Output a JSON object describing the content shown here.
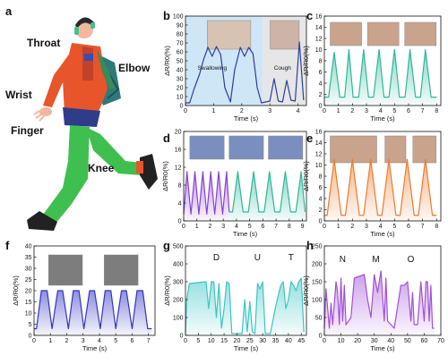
{
  "figure": {
    "illustration": {
      "panel_letter": "a",
      "labels": [
        {
          "key": "throat",
          "text": "Throat"
        },
        {
          "key": "elbow",
          "text": "Elbow"
        },
        {
          "key": "wrist",
          "text": "Wrist"
        },
        {
          "key": "finger",
          "text": "Finger"
        },
        {
          "key": "knee",
          "text": "Knee"
        }
      ]
    }
  },
  "chart_data": [
    {
      "panel": "b",
      "type": "line",
      "xlabel": "Time (s)",
      "ylabel": "ΔR/R0(%)",
      "xlim": [
        0,
        4.3
      ],
      "ylim": [
        0,
        100
      ],
      "xticks": [
        0,
        1,
        2,
        3,
        4
      ],
      "yticks": [
        0,
        10,
        20,
        30,
        40,
        50,
        60,
        70,
        80,
        90,
        100
      ],
      "color": "#2a3f9e",
      "fill": null,
      "bands": [
        {
          "from": 0,
          "to": 2.75,
          "color": "#cfe6f6"
        },
        {
          "from": 2.75,
          "to": 4.3,
          "color": "#e6e6e6"
        }
      ],
      "annotations": [
        {
          "text": "Swallowing",
          "x": 0.95,
          "y": 40
        },
        {
          "text": "Cough",
          "x": 3.45,
          "y": 40
        }
      ],
      "x": [
        0,
        0.15,
        0.3,
        0.5,
        0.65,
        0.8,
        0.95,
        1.1,
        1.25,
        1.4,
        1.6,
        1.75,
        1.95,
        2.1,
        2.25,
        2.4,
        2.55,
        2.7,
        2.85,
        3.0,
        3.15,
        3.3,
        3.45,
        3.6,
        3.75,
        3.9,
        4.05,
        4.2
      ],
      "y": [
        3,
        3,
        18,
        35,
        52,
        65,
        55,
        66,
        57,
        20,
        4,
        40,
        65,
        55,
        65,
        58,
        20,
        3,
        4,
        5,
        30,
        5,
        4,
        28,
        6,
        5,
        71,
        6
      ]
    },
    {
      "panel": "c",
      "type": "area",
      "xlabel": "Time (s)",
      "ylabel": "ΔR/R0(%)",
      "xlim": [
        0,
        8.3
      ],
      "ylim": [
        0,
        16
      ],
      "xticks": [
        0,
        1,
        2,
        3,
        4,
        5,
        6,
        7,
        8
      ],
      "yticks": [
        0,
        2,
        4,
        6,
        8,
        10,
        12,
        14,
        16
      ],
      "color": "#2bb89a",
      "fill": "#2bb89a",
      "x": [
        0,
        0.3,
        0.7,
        1.1,
        1.45,
        1.75,
        2.05,
        2.45,
        2.8,
        3.15,
        3.5,
        3.9,
        4.25,
        4.6,
        5.0,
        5.35,
        5.75,
        6.1,
        6.5,
        6.85,
        7.2,
        7.6,
        8.0
      ],
      "y": [
        1.5,
        1.5,
        9.5,
        1.5,
        1.5,
        10,
        1.5,
        1.5,
        10,
        1.5,
        1.5,
        10,
        1.5,
        1.5,
        10,
        1.5,
        1.5,
        10,
        1.5,
        1.5,
        10,
        1.5,
        1.5
      ]
    },
    {
      "panel": "d",
      "type": "area",
      "xlabel": "Time (s)",
      "ylabel": "ΔR/R0(%)",
      "xlim": [
        0,
        9.3
      ],
      "ylim": [
        0,
        20
      ],
      "xticks": [
        0,
        1,
        2,
        3,
        4,
        5,
        6,
        7,
        8,
        9
      ],
      "yticks": [
        0,
        4,
        8,
        12,
        16,
        20
      ],
      "series": [
        {
          "color": "#8a3fd4",
          "fill": "#8a3fd4",
          "x": [
            0,
            0.25,
            0.55,
            0.85,
            1.15,
            1.45,
            1.75,
            2.05,
            2.35,
            2.65,
            2.95,
            3.25,
            3.45
          ],
          "y": [
            1.5,
            11,
            1.5,
            11,
            1.5,
            11,
            1.5,
            11,
            1.5,
            11,
            1.5,
            11,
            2
          ]
        },
        {
          "color": "#2bb89a",
          "fill": "#2bb89a",
          "x": [
            3.45,
            3.7,
            4.1,
            4.5,
            4.9,
            5.3,
            5.7,
            6.1,
            6.5,
            6.9,
            7.3,
            7.7,
            8.1,
            8.5,
            8.9,
            9.2
          ],
          "y": [
            2,
            2,
            11,
            2,
            2,
            11,
            2,
            2,
            11,
            2,
            2,
            11,
            2,
            2,
            11,
            2
          ]
        }
      ]
    },
    {
      "panel": "e",
      "type": "area",
      "xlabel": "Time (s)",
      "ylabel": "ΔR/R0(%)",
      "xlim": [
        0,
        8.3
      ],
      "ylim": [
        0,
        16
      ],
      "xticks": [
        0,
        1,
        2,
        3,
        4,
        5,
        6,
        7,
        8
      ],
      "yticks": [
        0,
        2,
        4,
        6,
        8,
        10,
        12,
        14,
        16
      ],
      "color": "#f07a2a",
      "fill": "#f07a2a",
      "x": [
        0,
        0.2,
        0.7,
        1.2,
        1.5,
        2.0,
        2.5,
        2.8,
        3.3,
        3.8,
        4.1,
        4.6,
        5.1,
        5.4,
        5.9,
        6.4,
        6.7,
        7.2,
        7.7,
        8.0
      ],
      "y": [
        1,
        1,
        11,
        1,
        1,
        11,
        1,
        1,
        11,
        1,
        1,
        11,
        1,
        1,
        11,
        1,
        1,
        11,
        1,
        1
      ]
    },
    {
      "panel": "f",
      "type": "area",
      "xlabel": "Time (s)",
      "ylabel": "ΔR/R0(%)",
      "xlim": [
        0,
        7.4
      ],
      "ylim": [
        0,
        40
      ],
      "xticks": [
        0,
        1,
        2,
        3,
        4,
        5,
        6,
        7
      ],
      "yticks": [
        0,
        5,
        10,
        15,
        20,
        25,
        30,
        35,
        40
      ],
      "color": "#2f35c4",
      "fill": "#2f35c4",
      "x": [
        0,
        0.15,
        0.45,
        0.8,
        1.1,
        1.45,
        1.75,
        2.1,
        2.4,
        2.75,
        3.05,
        3.4,
        3.7,
        4.05,
        4.35,
        4.7,
        5.0,
        5.35,
        5.65,
        6.0,
        6.3,
        6.65,
        6.95,
        7.2
      ],
      "y": [
        3,
        3,
        20,
        20,
        3,
        20,
        20,
        3,
        20,
        20,
        3,
        20,
        20,
        3,
        20,
        20,
        3,
        20,
        20,
        3,
        20,
        20,
        3,
        3
      ]
    },
    {
      "panel": "g",
      "type": "area",
      "xlabel": "Time (s)",
      "ylabel": "ΔR/R0(%)",
      "xlim": [
        0,
        47
      ],
      "ylim": [
        0,
        500
      ],
      "xticks": [
        0,
        5,
        10,
        15,
        20,
        25,
        30,
        35,
        40,
        45
      ],
      "yticks": [
        0,
        100,
        200,
        300,
        400,
        500
      ],
      "color": "#3cc4c4",
      "fill": "#3cc4c4",
      "annotations": [
        {
          "text": "D",
          "x": 12,
          "y": 420
        },
        {
          "text": "U",
          "x": 28,
          "y": 420
        },
        {
          "text": "T",
          "x": 41,
          "y": 420
        }
      ],
      "x": [
        0,
        0.5,
        1.5,
        8,
        9,
        10,
        11,
        12,
        13,
        14,
        15,
        16,
        17,
        18,
        22,
        23,
        24,
        25,
        26,
        27,
        28,
        29,
        30,
        31,
        33,
        35,
        36,
        37,
        38,
        39,
        40,
        41,
        42,
        43,
        44,
        45,
        46
      ],
      "y": [
        15,
        200,
        290,
        300,
        150,
        300,
        300,
        100,
        290,
        40,
        150,
        300,
        290,
        10,
        10,
        200,
        20,
        190,
        20,
        10,
        290,
        260,
        300,
        10,
        10,
        160,
        220,
        280,
        300,
        150,
        200,
        300,
        280,
        250,
        300,
        320,
        20
      ]
    },
    {
      "panel": "h",
      "type": "area",
      "xlabel": "Time (s)",
      "ylabel": "ΔR/R0(%)",
      "xlim": [
        0,
        70
      ],
      "ylim": [
        0,
        250
      ],
      "xticks": [
        0,
        10,
        20,
        30,
        40,
        50,
        60,
        70
      ],
      "yticks": [
        0,
        50,
        100,
        150,
        200,
        250
      ],
      "color": "#a24fd8",
      "fill": "#a24fd8",
      "annotations": [
        {
          "text": "N",
          "x": 11,
          "y": 205
        },
        {
          "text": "M",
          "x": 31,
          "y": 205
        },
        {
          "text": "O",
          "x": 52,
          "y": 205
        }
      ],
      "x": [
        0,
        1,
        3,
        4,
        5,
        7,
        8,
        9,
        10,
        11,
        12,
        13,
        16,
        18,
        24,
        26,
        28,
        30,
        32,
        34,
        36,
        37,
        38,
        42,
        44,
        46,
        48,
        50,
        52,
        53,
        54,
        56,
        58,
        60,
        61,
        62,
        63,
        64,
        65,
        66
      ],
      "y": [
        20,
        130,
        20,
        90,
        30,
        150,
        120,
        30,
        160,
        40,
        140,
        30,
        50,
        160,
        170,
        100,
        50,
        170,
        120,
        180,
        40,
        160,
        40,
        20,
        80,
        140,
        140,
        150,
        40,
        120,
        30,
        30,
        150,
        40,
        150,
        150,
        40,
        140,
        20,
        20
      ]
    }
  ]
}
